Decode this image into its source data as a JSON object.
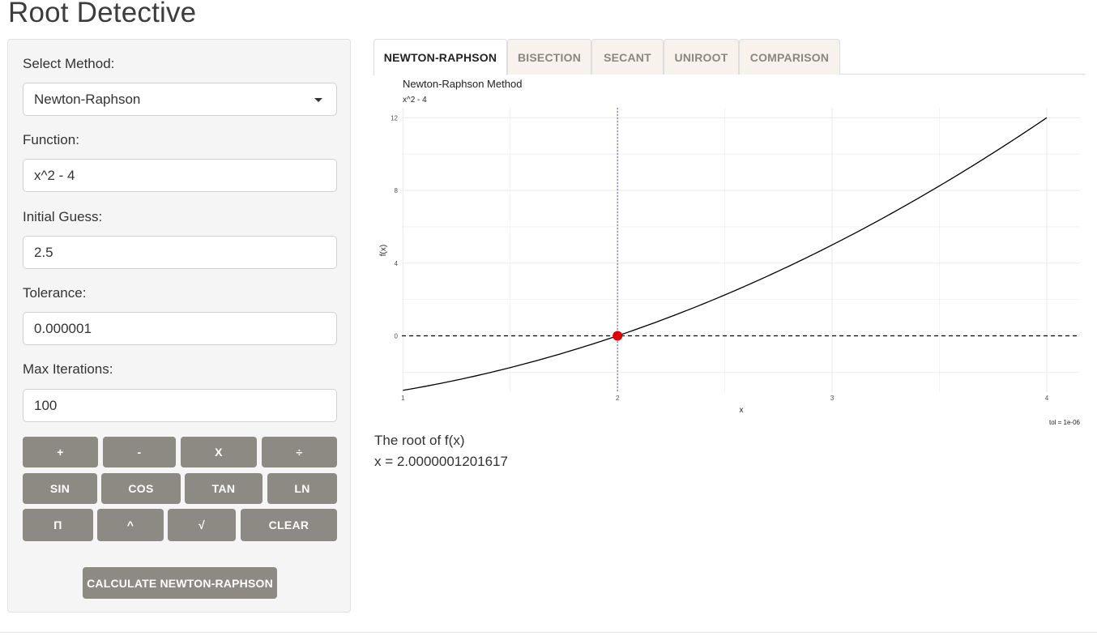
{
  "app": {
    "title": "Root Detective"
  },
  "sidebar": {
    "method_label": "Select Method:",
    "method_value": "Newton-Raphson",
    "function_label": "Function:",
    "function_value": "x^2 - 4",
    "guess_label": "Initial Guess:",
    "guess_value": "2.5",
    "tolerance_label": "Tolerance:",
    "tolerance_value": "0.000001",
    "maxiter_label": "Max Iterations:",
    "maxiter_value": "100",
    "keypad": {
      "row1": [
        "+",
        "-",
        "X",
        "÷"
      ],
      "row2": [
        "SIN",
        "COS",
        "TAN",
        "LN"
      ],
      "row3": [
        "Π",
        "^",
        "√",
        "CLEAR"
      ]
    },
    "calculate_label": "CALCULATE NEWTON-RAPHSON"
  },
  "tabs": [
    {
      "label": "NEWTON-RAPHSON",
      "active": true
    },
    {
      "label": "BISECTION",
      "active": false
    },
    {
      "label": "SECANT",
      "active": false
    },
    {
      "label": "UNIROOT",
      "active": false
    },
    {
      "label": "COMPARISON",
      "active": false
    }
  ],
  "result": {
    "title": "The root of f(x)",
    "value": "x = 2.0000001201617"
  },
  "chart_data": {
    "type": "line",
    "title": "Newton-Raphson Method",
    "subtitle": "x^2 - 4",
    "xlabel": "x",
    "ylabel": "f(x)",
    "caption": "tol = 1e-06",
    "xlim": [
      0.995,
      4.155
    ],
    "ylim": [
      -3.1,
      12.55
    ],
    "x_ticks": [
      "1",
      "2",
      "3",
      "4"
    ],
    "y_ticks": [
      "0",
      "4",
      "8",
      "12"
    ],
    "x_tick_values": [
      1,
      2,
      3,
      4
    ],
    "y_tick_values": [
      0,
      4,
      8,
      12
    ],
    "function": "x^2 - 4",
    "x_range": [
      1,
      4
    ],
    "root": {
      "x": 2.0000001201617,
      "y": 0
    },
    "zero_line": "dashed",
    "root_vline": "dotted",
    "colors": {
      "curve": "#000000",
      "root_point": "#e10000",
      "vline": "#6b6bd6",
      "grid": "#ebebeb"
    },
    "grid": true
  }
}
